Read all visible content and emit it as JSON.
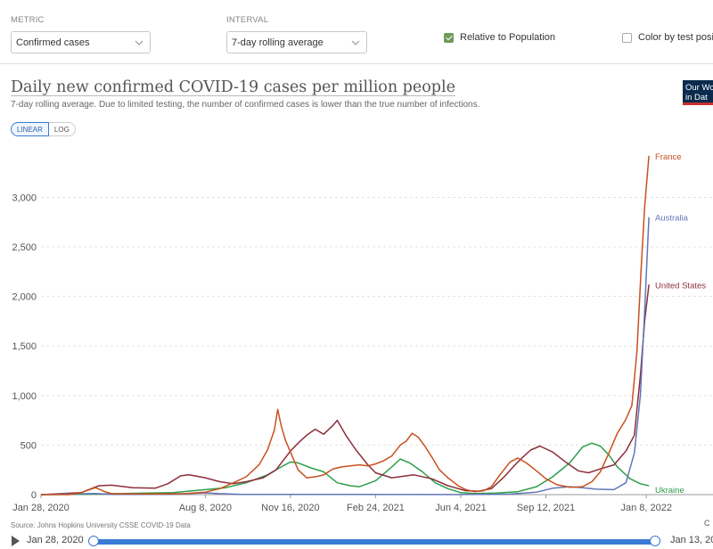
{
  "controls": {
    "metric_label": "METRIC",
    "metric_value": "Confirmed cases",
    "interval_label": "INTERVAL",
    "interval_value": "7-day rolling average",
    "relative_label": "Relative to Population",
    "relative_checked": true,
    "color_label": "Color by test positi",
    "color_checked": false
  },
  "header": {
    "title": "Daily new confirmed COVID-19 cases per million people",
    "subtitle": "7-day rolling average. Due to limited testing, the number of confirmed cases is lower than the true number of infections.",
    "logo_text_1": "Our Wo",
    "logo_text_2": "in Dat"
  },
  "scale": {
    "linear": "LINEAR",
    "log": "LOG",
    "active": "linear"
  },
  "source": "Source: Johns Hopkins University CSSE COVID-19 Data",
  "corner_text": "C",
  "timeline": {
    "start": "Jan 28, 2020",
    "end": "Jan 13, 20"
  },
  "colors": {
    "france": "#c8501e",
    "australia": "#6077b8",
    "united_states": "#8c2e3a",
    "ukraine": "#2f9e4a",
    "grid": "#e3e3e3",
    "accent": "#3a7bd5"
  },
  "chart_data": {
    "type": "line",
    "title": "Daily new confirmed COVID-19 cases per million people",
    "ylim": [
      0,
      3400
    ],
    "yticks": [
      0,
      500,
      1000,
      1500,
      2000,
      2500,
      3000
    ],
    "ytick_labels": [
      "0",
      "500",
      "1,000",
      "1,500",
      "2,000",
      "2,500",
      "3,000"
    ],
    "xticks": [
      "2020-01-28",
      "2020-08-08",
      "2020-11-16",
      "2021-02-24",
      "2021-06-04",
      "2021-09-12",
      "2022-01-08"
    ],
    "xtick_labels": [
      "Jan 28, 2020",
      "Aug 8, 2020",
      "Nov 16, 2020",
      "Feb 24, 2021",
      "Jun 4, 2021",
      "Sep 12, 2021",
      "Jan 8, 2022"
    ],
    "xlim": [
      "2020-01-28",
      "2022-01-13"
    ],
    "grid": true,
    "series": [
      {
        "name": "France",
        "color_key": "france",
        "points": [
          [
            "2020-01-28",
            0
          ],
          [
            "2020-03-01",
            0
          ],
          [
            "2020-03-15",
            20
          ],
          [
            "2020-03-25",
            50
          ],
          [
            "2020-04-01",
            70
          ],
          [
            "2020-04-12",
            30
          ],
          [
            "2020-04-20",
            10
          ],
          [
            "2020-05-15",
            8
          ],
          [
            "2020-06-15",
            7
          ],
          [
            "2020-07-15",
            10
          ],
          [
            "2020-08-08",
            25
          ],
          [
            "2020-08-25",
            60
          ],
          [
            "2020-09-10",
            120
          ],
          [
            "2020-09-25",
            180
          ],
          [
            "2020-10-10",
            300
          ],
          [
            "2020-10-20",
            450
          ],
          [
            "2020-10-28",
            650
          ],
          [
            "2020-11-01",
            860
          ],
          [
            "2020-11-05",
            700
          ],
          [
            "2020-11-10",
            550
          ],
          [
            "2020-11-16",
            430
          ],
          [
            "2020-11-25",
            250
          ],
          [
            "2020-12-05",
            170
          ],
          [
            "2020-12-15",
            180
          ],
          [
            "2020-12-25",
            200
          ],
          [
            "2021-01-05",
            260
          ],
          [
            "2021-01-15",
            280
          ],
          [
            "2021-01-25",
            290
          ],
          [
            "2021-02-05",
            300
          ],
          [
            "2021-02-15",
            290
          ],
          [
            "2021-02-24",
            310
          ],
          [
            "2021-03-05",
            340
          ],
          [
            "2021-03-15",
            390
          ],
          [
            "2021-03-25",
            500
          ],
          [
            "2021-04-01",
            540
          ],
          [
            "2021-04-08",
            620
          ],
          [
            "2021-04-15",
            580
          ],
          [
            "2021-04-22",
            500
          ],
          [
            "2021-05-01",
            380
          ],
          [
            "2021-05-10",
            250
          ],
          [
            "2021-05-20",
            170
          ],
          [
            "2021-06-01",
            90
          ],
          [
            "2021-06-10",
            50
          ],
          [
            "2021-06-20",
            30
          ],
          [
            "2021-07-01",
            40
          ],
          [
            "2021-07-10",
            80
          ],
          [
            "2021-07-20",
            200
          ],
          [
            "2021-08-01",
            330
          ],
          [
            "2021-08-10",
            370
          ],
          [
            "2021-08-20",
            320
          ],
          [
            "2021-09-01",
            240
          ],
          [
            "2021-09-12",
            160
          ],
          [
            "2021-09-25",
            100
          ],
          [
            "2021-10-10",
            75
          ],
          [
            "2021-10-25",
            80
          ],
          [
            "2021-11-05",
            130
          ],
          [
            "2021-11-15",
            230
          ],
          [
            "2021-11-25",
            420
          ],
          [
            "2021-12-05",
            620
          ],
          [
            "2021-12-15",
            760
          ],
          [
            "2021-12-22",
            900
          ],
          [
            "2021-12-28",
            1450
          ],
          [
            "2022-01-02",
            2300
          ],
          [
            "2022-01-06",
            2900
          ],
          [
            "2022-01-11",
            3420
          ]
        ]
      },
      {
        "name": "Australia",
        "color_key": "australia",
        "points": [
          [
            "2020-01-28",
            0
          ],
          [
            "2020-03-20",
            10
          ],
          [
            "2020-04-01",
            12
          ],
          [
            "2020-04-20",
            2
          ],
          [
            "2020-07-01",
            4
          ],
          [
            "2020-08-08",
            18
          ],
          [
            "2020-08-25",
            10
          ],
          [
            "2020-09-20",
            3
          ],
          [
            "2021-06-01",
            1
          ],
          [
            "2021-08-01",
            5
          ],
          [
            "2021-09-01",
            25
          ],
          [
            "2021-09-20",
            65
          ],
          [
            "2021-10-10",
            80
          ],
          [
            "2021-10-25",
            70
          ],
          [
            "2021-11-10",
            55
          ],
          [
            "2021-12-01",
            50
          ],
          [
            "2021-12-15",
            120
          ],
          [
            "2021-12-25",
            420
          ],
          [
            "2022-01-01",
            1000
          ],
          [
            "2022-01-06",
            1850
          ],
          [
            "2022-01-11",
            2800
          ]
        ]
      },
      {
        "name": "United States",
        "color_key": "united_states",
        "points": [
          [
            "2020-01-28",
            0
          ],
          [
            "2020-03-15",
            20
          ],
          [
            "2020-04-05",
            90
          ],
          [
            "2020-04-20",
            95
          ],
          [
            "2020-05-15",
            70
          ],
          [
            "2020-06-10",
            65
          ],
          [
            "2020-06-25",
            110
          ],
          [
            "2020-07-10",
            190
          ],
          [
            "2020-07-20",
            200
          ],
          [
            "2020-08-08",
            170
          ],
          [
            "2020-08-25",
            130
          ],
          [
            "2020-09-10",
            110
          ],
          [
            "2020-09-25",
            130
          ],
          [
            "2020-10-15",
            170
          ],
          [
            "2020-10-30",
            250
          ],
          [
            "2020-11-16",
            440
          ],
          [
            "2020-11-25",
            520
          ],
          [
            "2020-12-05",
            600
          ],
          [
            "2020-12-15",
            660
          ],
          [
            "2020-12-25",
            610
          ],
          [
            "2021-01-05",
            700
          ],
          [
            "2021-01-10",
            750
          ],
          [
            "2021-01-20",
            600
          ],
          [
            "2021-02-01",
            450
          ],
          [
            "2021-02-15",
            300
          ],
          [
            "2021-02-24",
            220
          ],
          [
            "2021-03-15",
            170
          ],
          [
            "2021-04-10",
            200
          ],
          [
            "2021-05-01",
            160
          ],
          [
            "2021-05-20",
            90
          ],
          [
            "2021-06-10",
            40
          ],
          [
            "2021-06-25",
            35
          ],
          [
            "2021-07-10",
            60
          ],
          [
            "2021-07-25",
            180
          ],
          [
            "2021-08-10",
            330
          ],
          [
            "2021-08-25",
            450
          ],
          [
            "2021-09-05",
            490
          ],
          [
            "2021-09-20",
            430
          ],
          [
            "2021-10-05",
            330
          ],
          [
            "2021-10-20",
            240
          ],
          [
            "2021-11-01",
            220
          ],
          [
            "2021-11-15",
            260
          ],
          [
            "2021-12-01",
            300
          ],
          [
            "2021-12-15",
            440
          ],
          [
            "2021-12-25",
            600
          ],
          [
            "2022-01-01",
            1200
          ],
          [
            "2022-01-06",
            1750
          ],
          [
            "2022-01-11",
            2120
          ]
        ]
      },
      {
        "name": "Ukraine",
        "color_key": "ukraine",
        "points": [
          [
            "2020-01-28",
            0
          ],
          [
            "2020-04-01",
            5
          ],
          [
            "2020-06-01",
            15
          ],
          [
            "2020-07-01",
            20
          ],
          [
            "2020-08-08",
            50
          ],
          [
            "2020-09-01",
            70
          ],
          [
            "2020-09-25",
            120
          ],
          [
            "2020-10-20",
            200
          ],
          [
            "2020-11-01",
            260
          ],
          [
            "2020-11-16",
            330
          ],
          [
            "2020-11-25",
            320
          ],
          [
            "2020-12-10",
            270
          ],
          [
            "2020-12-25",
            230
          ],
          [
            "2021-01-10",
            120
          ],
          [
            "2021-01-25",
            90
          ],
          [
            "2021-02-05",
            80
          ],
          [
            "2021-02-24",
            140
          ],
          [
            "2021-03-15",
            280
          ],
          [
            "2021-03-25",
            360
          ],
          [
            "2021-04-05",
            320
          ],
          [
            "2021-04-20",
            230
          ],
          [
            "2021-05-05",
            120
          ],
          [
            "2021-05-20",
            60
          ],
          [
            "2021-06-04",
            20
          ],
          [
            "2021-06-20",
            12
          ],
          [
            "2021-07-15",
            15
          ],
          [
            "2021-08-10",
            30
          ],
          [
            "2021-09-01",
            80
          ],
          [
            "2021-09-20",
            180
          ],
          [
            "2021-10-10",
            320
          ],
          [
            "2021-10-25",
            480
          ],
          [
            "2021-11-05",
            520
          ],
          [
            "2021-11-15",
            490
          ],
          [
            "2021-11-25",
            400
          ],
          [
            "2021-12-05",
            280
          ],
          [
            "2021-12-20",
            160
          ],
          [
            "2022-01-01",
            110
          ],
          [
            "2022-01-11",
            90
          ]
        ]
      }
    ]
  }
}
